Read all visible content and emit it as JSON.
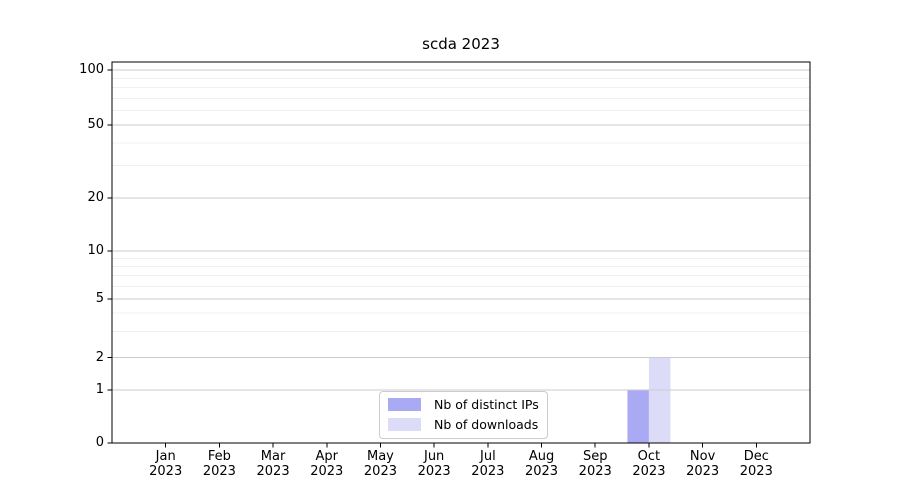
{
  "chart_data": {
    "type": "bar",
    "title": "scda 2023",
    "x_tick_labels": [
      {
        "line1": "Jan",
        "line2": "2023"
      },
      {
        "line1": "Feb",
        "line2": "2023"
      },
      {
        "line1": "Mar",
        "line2": "2023"
      },
      {
        "line1": "Apr",
        "line2": "2023"
      },
      {
        "line1": "May",
        "line2": "2023"
      },
      {
        "line1": "Jun",
        "line2": "2023"
      },
      {
        "line1": "Jul",
        "line2": "2023"
      },
      {
        "line1": "Aug",
        "line2": "2023"
      },
      {
        "line1": "Sep",
        "line2": "2023"
      },
      {
        "line1": "Oct",
        "line2": "2023"
      },
      {
        "line1": "Nov",
        "line2": "2023"
      },
      {
        "line1": "Dec",
        "line2": "2023"
      }
    ],
    "series": [
      {
        "name": "Nb of distinct IPs",
        "color": "#aaaaf4",
        "values": [
          0,
          0,
          0,
          0,
          0,
          0,
          0,
          0,
          0,
          1,
          0,
          0
        ]
      },
      {
        "name": "Nb of downloads",
        "color": "#dcdcf8",
        "values": [
          0,
          0,
          0,
          0,
          0,
          0,
          0,
          0,
          0,
          2,
          0,
          0
        ]
      }
    ],
    "yscale": "symlog",
    "ylim": [
      0,
      112
    ],
    "y_major_ticks": [
      0,
      1,
      2,
      5,
      10,
      20,
      50,
      100
    ],
    "y_minor_ticks": [
      3,
      4,
      6,
      7,
      8,
      9,
      30,
      40,
      60,
      70,
      80,
      90
    ],
    "grid": true,
    "legend": {
      "position": "lower-center",
      "entries": [
        "Nb of distinct IPs",
        "Nb of downloads"
      ]
    },
    "colors": {
      "bar_distinct_ips": "#aaaaf4",
      "bar_downloads": "#dcdcf8",
      "grid_major": "#cbcbcb",
      "grid_minor": "#f0f0f0",
      "axis": "#000000",
      "legend_border": "#cccccc",
      "background": "#ffffff",
      "text": "#000000"
    }
  }
}
